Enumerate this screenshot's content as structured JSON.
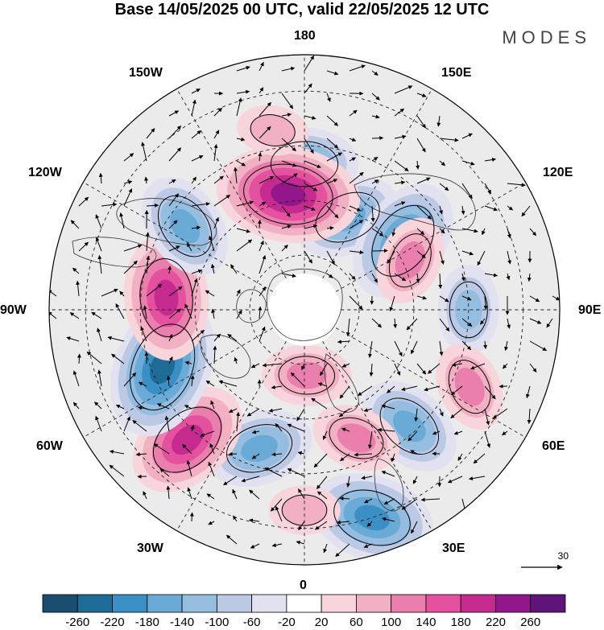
{
  "title": "Base 14/05/2025 00 UTC, valid 22/05/2025 12 UTC",
  "brand": "MODES",
  "longitude_labels": {
    "lon_180": "180",
    "lon_150e": "150E",
    "lon_120e": "120E",
    "lon_90e": "90E",
    "lon_60e": "60E",
    "lon_30e": "30E",
    "lon_0": "0",
    "lon_30w": "30W",
    "lon_60w": "60W",
    "lon_90w": "90W",
    "lon_120w": "120W",
    "lon_150w": "150W"
  },
  "reference_vector": {
    "value": "30"
  },
  "colorbar": {
    "labels": [
      "-260",
      "-220",
      "-180",
      "-140",
      "-100",
      "-60",
      "-20",
      "20",
      "60",
      "100",
      "140",
      "180",
      "220",
      "260"
    ],
    "colors": [
      "#1a4e6e",
      "#1f6b97",
      "#3a8fc4",
      "#6aaad6",
      "#95bde0",
      "#bcc9e4",
      "#e1e1ef",
      "#ffffff",
      "#f8d5da",
      "#f1b1c3",
      "#ea7fae",
      "#e4519f",
      "#c52a8f",
      "#93178b",
      "#5e1478"
    ]
  },
  "anomaly_centers": [
    {
      "lon": 180,
      "lat": 50,
      "value": -140
    },
    {
      "lon": 155,
      "lat": 62,
      "value": -140
    },
    {
      "lon": 125,
      "lat": 57,
      "value": -180
    },
    {
      "lon": 115,
      "lat": 58,
      "value": 100
    },
    {
      "lon": 90,
      "lat": 45,
      "value": -100
    },
    {
      "lon": 65,
      "lat": 40,
      "value": 100
    },
    {
      "lon": 42,
      "lat": 47,
      "value": -140
    },
    {
      "lon": 22,
      "lat": 52,
      "value": 100
    },
    {
      "lon": 18,
      "lat": 30,
      "value": -180
    },
    {
      "lon": 0,
      "lat": 35,
      "value": 60
    },
    {
      "lon": 2,
      "lat": 72,
      "value": 100
    },
    {
      "lon": -18,
      "lat": 50,
      "value": -140
    },
    {
      "lon": -42,
      "lat": 42,
      "value": 180
    },
    {
      "lon": -68,
      "lat": 48,
      "value": -220
    },
    {
      "lon": -95,
      "lat": 52,
      "value": 180
    },
    {
      "lon": -125,
      "lat": 50,
      "value": -140
    },
    {
      "lon": -172,
      "lat": 58,
      "value": 220
    },
    {
      "lon": -170,
      "lat": 40,
      "value": 60
    }
  ]
}
